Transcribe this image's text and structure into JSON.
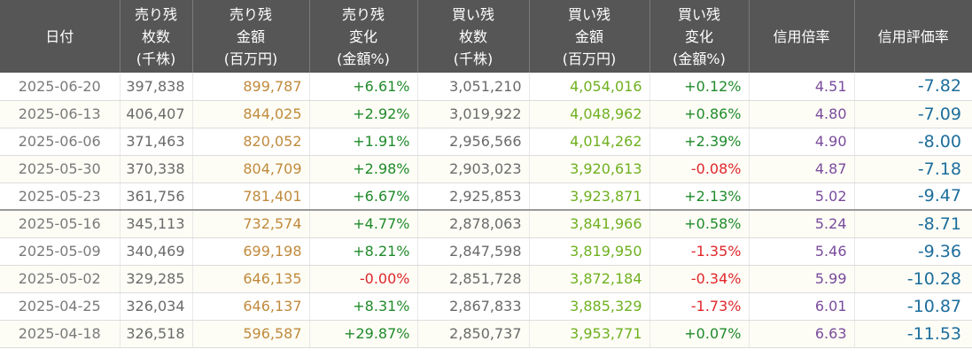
{
  "headers": [
    [
      "日付"
    ],
    [
      "売り残",
      "枚数",
      "(千株)"
    ],
    [
      "売り残",
      "金額",
      "(百万円)"
    ],
    [
      "売り残",
      "変化",
      "(金額%)"
    ],
    [
      "買い残",
      "枚数",
      "(千株)"
    ],
    [
      "買い残",
      "金額",
      "(百万円)"
    ],
    [
      "買い残",
      "変化",
      "(金額%)"
    ],
    [
      "信用倍率"
    ],
    [
      "信用評価率"
    ]
  ],
  "colors": {
    "header_bg": "#565656",
    "positive": "#1f8a2a",
    "negative": "#e0262a",
    "sell_amount": "#c08a3c",
    "buy_amount": "#6fb01f",
    "ratio": "#7a4b9c",
    "valuation": "#1d6e9c"
  },
  "rows": [
    [
      "2025-06-20",
      "397,838",
      "899,787",
      "+6.61%",
      "3,051,210",
      "4,054,016",
      "+0.12%",
      "4.51",
      "-7.82"
    ],
    [
      "2025-06-13",
      "406,407",
      "844,025",
      "+2.92%",
      "3,019,922",
      "4,048,962",
      "+0.86%",
      "4.80",
      "-7.09"
    ],
    [
      "2025-06-06",
      "371,463",
      "820,052",
      "+1.91%",
      "2,956,566",
      "4,014,262",
      "+2.39%",
      "4.90",
      "-8.00"
    ],
    [
      "2025-05-30",
      "370,338",
      "804,709",
      "+2.98%",
      "2,903,023",
      "3,920,613",
      "-0.08%",
      "4.87",
      "-7.18"
    ],
    [
      "2025-05-23",
      "361,756",
      "781,401",
      "+6.67%",
      "2,925,853",
      "3,923,871",
      "+2.13%",
      "5.02",
      "-9.47"
    ],
    [
      "2025-05-16",
      "345,113",
      "732,574",
      "+4.77%",
      "2,878,063",
      "3,841,966",
      "+0.58%",
      "5.24",
      "-8.71"
    ],
    [
      "2025-05-09",
      "340,469",
      "699,198",
      "+8.21%",
      "2,847,598",
      "3,819,950",
      "-1.35%",
      "5.46",
      "-9.36"
    ],
    [
      "2025-05-02",
      "329,285",
      "646,135",
      "-0.00%",
      "2,851,728",
      "3,872,184",
      "-0.34%",
      "5.99",
      "-10.28"
    ],
    [
      "2025-04-25",
      "326,034",
      "646,137",
      "+8.31%",
      "2,867,833",
      "3,885,329",
      "-1.73%",
      "6.01",
      "-10.87"
    ],
    [
      "2025-04-18",
      "326,518",
      "596,587",
      "+29.87%",
      "2,850,737",
      "3,953,771",
      "+0.07%",
      "6.63",
      "-11.53"
    ]
  ]
}
